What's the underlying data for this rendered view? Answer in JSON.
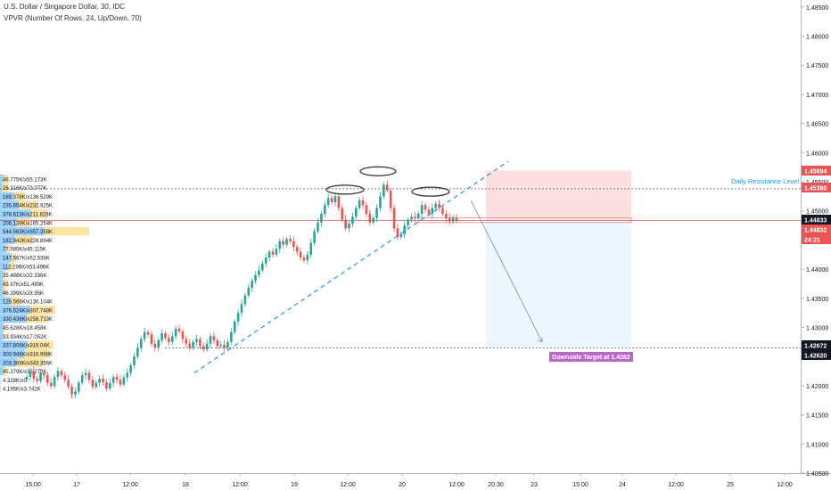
{
  "header": {
    "title": "U.S. Dollar / Singapore Dollar, 30, IDC",
    "indicator": "VPVR (Number Of Rows, 24, Up/Down, 70)"
  },
  "colors": {
    "up": "#26a69a",
    "down": "#ef5350",
    "trendline": "#2196f3",
    "resistance": "#2196f3",
    "target_label_bg": "#ba68c8",
    "vp_up": "#2196f3",
    "vp_down": "#fbc02d"
  },
  "chart_data": {
    "type": "candlestick",
    "symbol": "USDSGD",
    "interval": "30",
    "ylim": [
      1.405,
      1.4862
    ],
    "y_ticks": [
      "1.48500",
      "1.48000",
      "1.47500",
      "1.47000",
      "1.46500",
      "1.46000",
      "1.45500",
      "1.45000",
      "1.44500",
      "1.44000",
      "1.43500",
      "1.43000",
      "1.42500",
      "1.42000",
      "1.41500",
      "1.41000",
      "1.40500"
    ],
    "x_ticks": [
      "15:00",
      "17",
      "12:00",
      "18",
      "12:00",
      "19",
      "12:00",
      "20",
      "12:00",
      "20:30",
      "23",
      "15:00",
      "24",
      "12:00",
      "25",
      "12:00"
    ],
    "price_labels": [
      {
        "text": "1.45694",
        "color": "#ef5350",
        "value": 1.45694
      },
      {
        "text": "1.45380",
        "color": "#ef5350",
        "value": 1.4538
      },
      {
        "text": "1.44833",
        "color": "#131722",
        "value": 1.44833
      },
      {
        "text": "1.44832",
        "color": "#ef5350",
        "value": 1.44832
      },
      {
        "text": "24:21",
        "color": "#ef5350",
        "value": 1.4472
      },
      {
        "text": "1.42672",
        "color": "#131722",
        "value": 1.42672
      },
      {
        "text": "1.42620",
        "color": "#131722",
        "value": 1.4262
      }
    ],
    "annotations": {
      "resistance_label": "Daily Resistance Level",
      "target_label": "Downside Target at 1.4262",
      "resistance_level": 1.4538,
      "target_level": 1.4262,
      "stop_level": 1.45694,
      "entry_level": 1.44833
    },
    "volume_profile": [
      {
        "label": "46.775K/x55.173K",
        "up": 46.775,
        "down": 55.173,
        "price": 1.4555
      },
      {
        "label": "26.316K/x73.077K",
        "up": 26.316,
        "down": 73.077,
        "price": 1.454
      },
      {
        "label": "169.378K/x136.529K",
        "up": 169.378,
        "down": 136.529,
        "price": 1.4525
      },
      {
        "label": "235.654K/x232.925K",
        "up": 235.654,
        "down": 232.925,
        "price": 1.451
      },
      {
        "label": "378.613K/x211.828K",
        "up": 378.613,
        "down": 211.828,
        "price": 1.4495
      },
      {
        "label": "206.139K/x165.254K",
        "up": 206.139,
        "down": 165.254,
        "price": 1.448
      },
      {
        "label": "544.563K/x557.358K",
        "up": 544.563,
        "down": 557.358,
        "price": 1.4465
      },
      {
        "label": "182.942K/x228.894K",
        "up": 182.942,
        "down": 228.894,
        "price": 1.445
      },
      {
        "label": "77.585K/x45.115K",
        "up": 77.585,
        "down": 45.115,
        "price": 1.4435
      },
      {
        "label": "147.567K/x52.538K",
        "up": 147.567,
        "down": 52.538,
        "price": 1.442
      },
      {
        "label": "112.206K/x53.496K",
        "up": 112.206,
        "down": 53.496,
        "price": 1.4405
      },
      {
        "label": "35.488K/x32.336K",
        "up": 35.488,
        "down": 32.336,
        "price": 1.439
      },
      {
        "label": "43.97K/x51.489K",
        "up": 43.97,
        "down": 51.489,
        "price": 1.4375
      },
      {
        "label": "46.399K/x28.95K",
        "up": 46.399,
        "down": 28.95,
        "price": 1.436
      },
      {
        "label": "128.566K/x130.104K",
        "up": 128.566,
        "down": 130.104,
        "price": 1.4345
      },
      {
        "label": "376.524K/x307.748K",
        "up": 376.524,
        "down": 307.748,
        "price": 1.433
      },
      {
        "label": "330.436K/x258.713K",
        "up": 330.436,
        "down": 258.713,
        "price": 1.4315
      },
      {
        "label": "45.628K/x18.458K",
        "up": 45.628,
        "down": 18.458,
        "price": 1.43
      },
      {
        "label": "33.934K/x17.052K",
        "up": 33.934,
        "down": 17.052,
        "price": 1.4285
      },
      {
        "label": "337.806K/x319.04K",
        "up": 337.806,
        "down": 319.04,
        "price": 1.427
      },
      {
        "label": "303.948K/x316.998K",
        "up": 303.948,
        "down": 316.998,
        "price": 1.4255
      },
      {
        "label": "203.369K/x343.356K",
        "up": 203.369,
        "down": 343.356,
        "price": 1.424
      },
      {
        "label": "45.379K/x32.273K",
        "up": 45.379,
        "down": 32.273,
        "price": 1.4225
      },
      {
        "label": "4.328K/x0",
        "up": 4.328,
        "down": 0,
        "price": 1.421
      },
      {
        "label": "4.195K/x3.742K",
        "up": 4.195,
        "down": 3.742,
        "price": 1.4195
      }
    ],
    "series_close": [
      1.4215,
      1.4225,
      1.4212,
      1.4208,
      1.4222,
      1.4218,
      1.4205,
      1.4199,
      1.4215,
      1.4225,
      1.4218,
      1.421,
      1.4198,
      1.4185,
      1.419,
      1.4205,
      1.4218,
      1.4222,
      1.421,
      1.4198,
      1.4205,
      1.4212,
      1.4206,
      1.4195,
      1.4205,
      1.4215,
      1.421,
      1.4202,
      1.4214,
      1.4222,
      1.4235,
      1.425,
      1.4265,
      1.428,
      1.4292,
      1.4288,
      1.4272,
      1.4265,
      1.4278,
      1.429,
      1.4282,
      1.4275,
      1.4285,
      1.4298,
      1.4293,
      1.428,
      1.4272,
      1.4265,
      1.4275,
      1.428,
      1.4268,
      1.4262,
      1.4272,
      1.4285,
      1.4278,
      1.4268,
      1.427,
      1.4265,
      1.4275,
      1.4292,
      1.431,
      1.4325,
      1.434,
      1.4355,
      1.4368,
      1.438,
      1.439,
      1.4398,
      1.441,
      1.442,
      1.443,
      1.4425,
      1.4435,
      1.4448,
      1.4442,
      1.4452,
      1.4448,
      1.4438,
      1.443,
      1.442,
      1.4415,
      1.4425,
      1.4445,
      1.4465,
      1.448,
      1.4495,
      1.451,
      1.4522,
      1.4515,
      1.4525,
      1.4505,
      1.4485,
      1.447,
      1.4478,
      1.449,
      1.4505,
      1.4518,
      1.451,
      1.4495,
      1.448,
      1.4488,
      1.4505,
      1.4525,
      1.4545,
      1.4535,
      1.4505,
      1.447,
      1.4455,
      1.446,
      1.4475,
      1.4485,
      1.449,
      1.4488,
      1.4495,
      1.451,
      1.4502,
      1.4495,
      1.4505,
      1.4512,
      1.4505,
      1.4495,
      1.4488,
      1.4482,
      1.4488,
      1.4483
    ]
  }
}
